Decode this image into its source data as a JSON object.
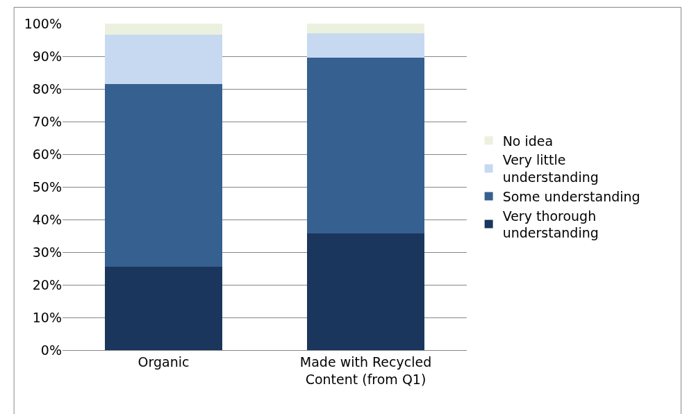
{
  "chart_data": {
    "type": "bar",
    "stacked": true,
    "categories": [
      "Organic",
      "Made with Recycled Content (from Q1)"
    ],
    "series": [
      {
        "name": "Very thorough understanding",
        "color": "#1a365d",
        "values": [
          25.5,
          35.8
        ]
      },
      {
        "name": "Some understanding",
        "color": "#36608f",
        "values": [
          56,
          53.7
        ]
      },
      {
        "name": "Very little understanding",
        "color": "#c6d9f1",
        "values": [
          15,
          7.5
        ]
      },
      {
        "name": "No idea",
        "color": "#ebf1de",
        "values": [
          3.5,
          3
        ]
      }
    ],
    "ylim": [
      0,
      100
    ],
    "yticks": [
      {
        "value": 0,
        "label": "0%"
      },
      {
        "value": 10,
        "label": "10%"
      },
      {
        "value": 20,
        "label": "20%"
      },
      {
        "value": 30,
        "label": "30%"
      },
      {
        "value": 40,
        "label": "40%"
      },
      {
        "value": 50,
        "label": "50%"
      },
      {
        "value": 60,
        "label": "60%"
      },
      {
        "value": 70,
        "label": "70%"
      },
      {
        "value": 80,
        "label": "80%"
      },
      {
        "value": 90,
        "label": "90%"
      },
      {
        "value": 100,
        "label": "100%"
      }
    ],
    "grid": "y",
    "legend": "right"
  }
}
